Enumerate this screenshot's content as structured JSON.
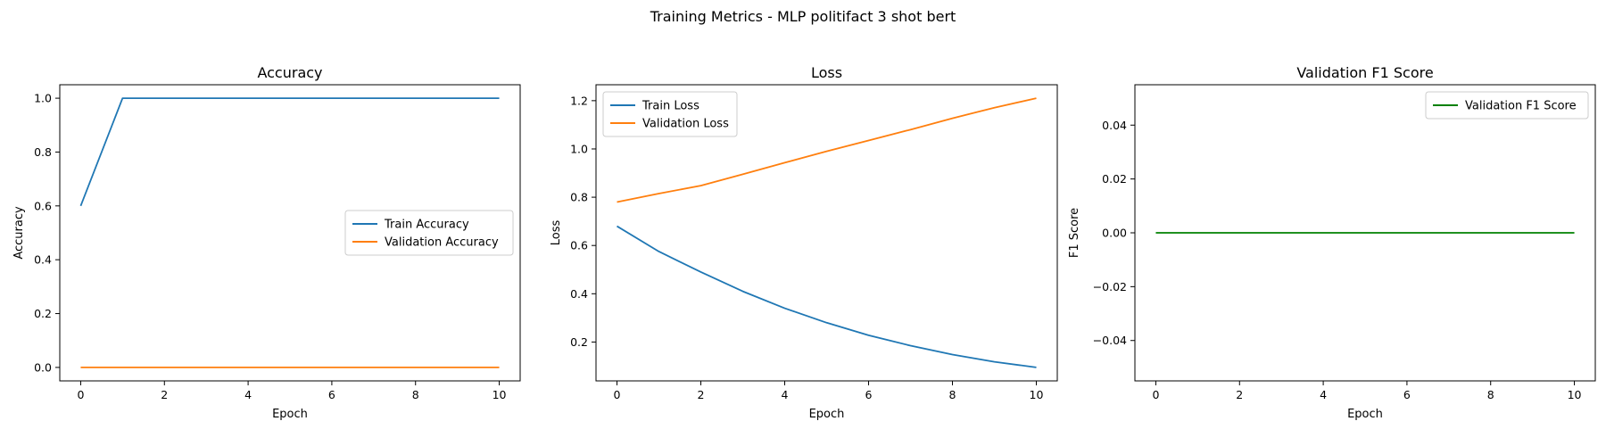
{
  "suptitle": "Training Metrics - MLP politifact 3 shot bert",
  "chart_data": [
    {
      "type": "line",
      "title": "Accuracy",
      "xlabel": "Epoch",
      "ylabel": "Accuracy",
      "x": [
        0,
        1,
        2,
        3,
        4,
        5,
        6,
        7,
        8,
        9,
        10
      ],
      "xlim": [
        -0.5,
        10.5
      ],
      "ylim": [
        -0.05,
        1.05
      ],
      "xticks": [
        0,
        2,
        4,
        6,
        8,
        10
      ],
      "xtick_labels": [
        "0",
        "2",
        "4",
        "6",
        "8",
        "10"
      ],
      "yticks": [
        0.0,
        0.2,
        0.4,
        0.6,
        0.8,
        1.0
      ],
      "ytick_labels": [
        "0.0",
        "0.2",
        "0.4",
        "0.6",
        "0.8",
        "1.0"
      ],
      "legend_loc": "center-right",
      "series": [
        {
          "name": "Train Accuracy",
          "color": "#1f77b4",
          "values": [
            0.6,
            1.0,
            1.0,
            1.0,
            1.0,
            1.0,
            1.0,
            1.0,
            1.0,
            1.0,
            1.0
          ]
        },
        {
          "name": "Validation Accuracy",
          "color": "#ff7f0e",
          "values": [
            0.0,
            0.0,
            0.0,
            0.0,
            0.0,
            0.0,
            0.0,
            0.0,
            0.0,
            0.0,
            0.0
          ]
        }
      ]
    },
    {
      "type": "line",
      "title": "Loss",
      "xlabel": "Epoch",
      "ylabel": "Loss",
      "x": [
        0,
        1,
        2,
        3,
        4,
        5,
        6,
        7,
        8,
        9,
        10
      ],
      "xlim": [
        -0.5,
        10.5
      ],
      "ylim": [
        0.039,
        1.266
      ],
      "xticks": [
        0,
        2,
        4,
        6,
        8,
        10
      ],
      "xtick_labels": [
        "0",
        "2",
        "4",
        "6",
        "8",
        "10"
      ],
      "yticks": [
        0.2,
        0.4,
        0.6,
        0.8,
        1.0,
        1.2
      ],
      "ytick_labels": [
        "0.2",
        "0.4",
        "0.6",
        "0.8",
        "1.0",
        "1.2"
      ],
      "legend_loc": "upper-left",
      "series": [
        {
          "name": "Train Loss",
          "color": "#1f77b4",
          "values": [
            0.68,
            0.575,
            0.49,
            0.41,
            0.34,
            0.28,
            0.228,
            0.185,
            0.148,
            0.118,
            0.095
          ]
        },
        {
          "name": "Validation Loss",
          "color": "#ff7f0e",
          "values": [
            0.78,
            0.815,
            0.848,
            0.895,
            0.943,
            0.99,
            1.035,
            1.08,
            1.127,
            1.171,
            1.21
          ]
        }
      ]
    },
    {
      "type": "line",
      "title": "Validation F1 Score",
      "xlabel": "Epoch",
      "ylabel": "F1 Score",
      "x": [
        0,
        1,
        2,
        3,
        4,
        5,
        6,
        7,
        8,
        9,
        10
      ],
      "xlim": [
        -0.5,
        10.5
      ],
      "ylim": [
        -0.055,
        0.055
      ],
      "xticks": [
        0,
        2,
        4,
        6,
        8,
        10
      ],
      "xtick_labels": [
        "0",
        "2",
        "4",
        "6",
        "8",
        "10"
      ],
      "yticks": [
        -0.04,
        -0.02,
        0.0,
        0.02,
        0.04
      ],
      "ytick_labels": [
        "−0.04",
        "−0.02",
        "0.00",
        "0.02",
        "0.04"
      ],
      "legend_loc": "upper-right",
      "series": [
        {
          "name": "Validation F1 Score",
          "color": "#008000",
          "values": [
            0,
            0,
            0,
            0,
            0,
            0,
            0,
            0,
            0,
            0,
            0
          ]
        }
      ]
    }
  ]
}
